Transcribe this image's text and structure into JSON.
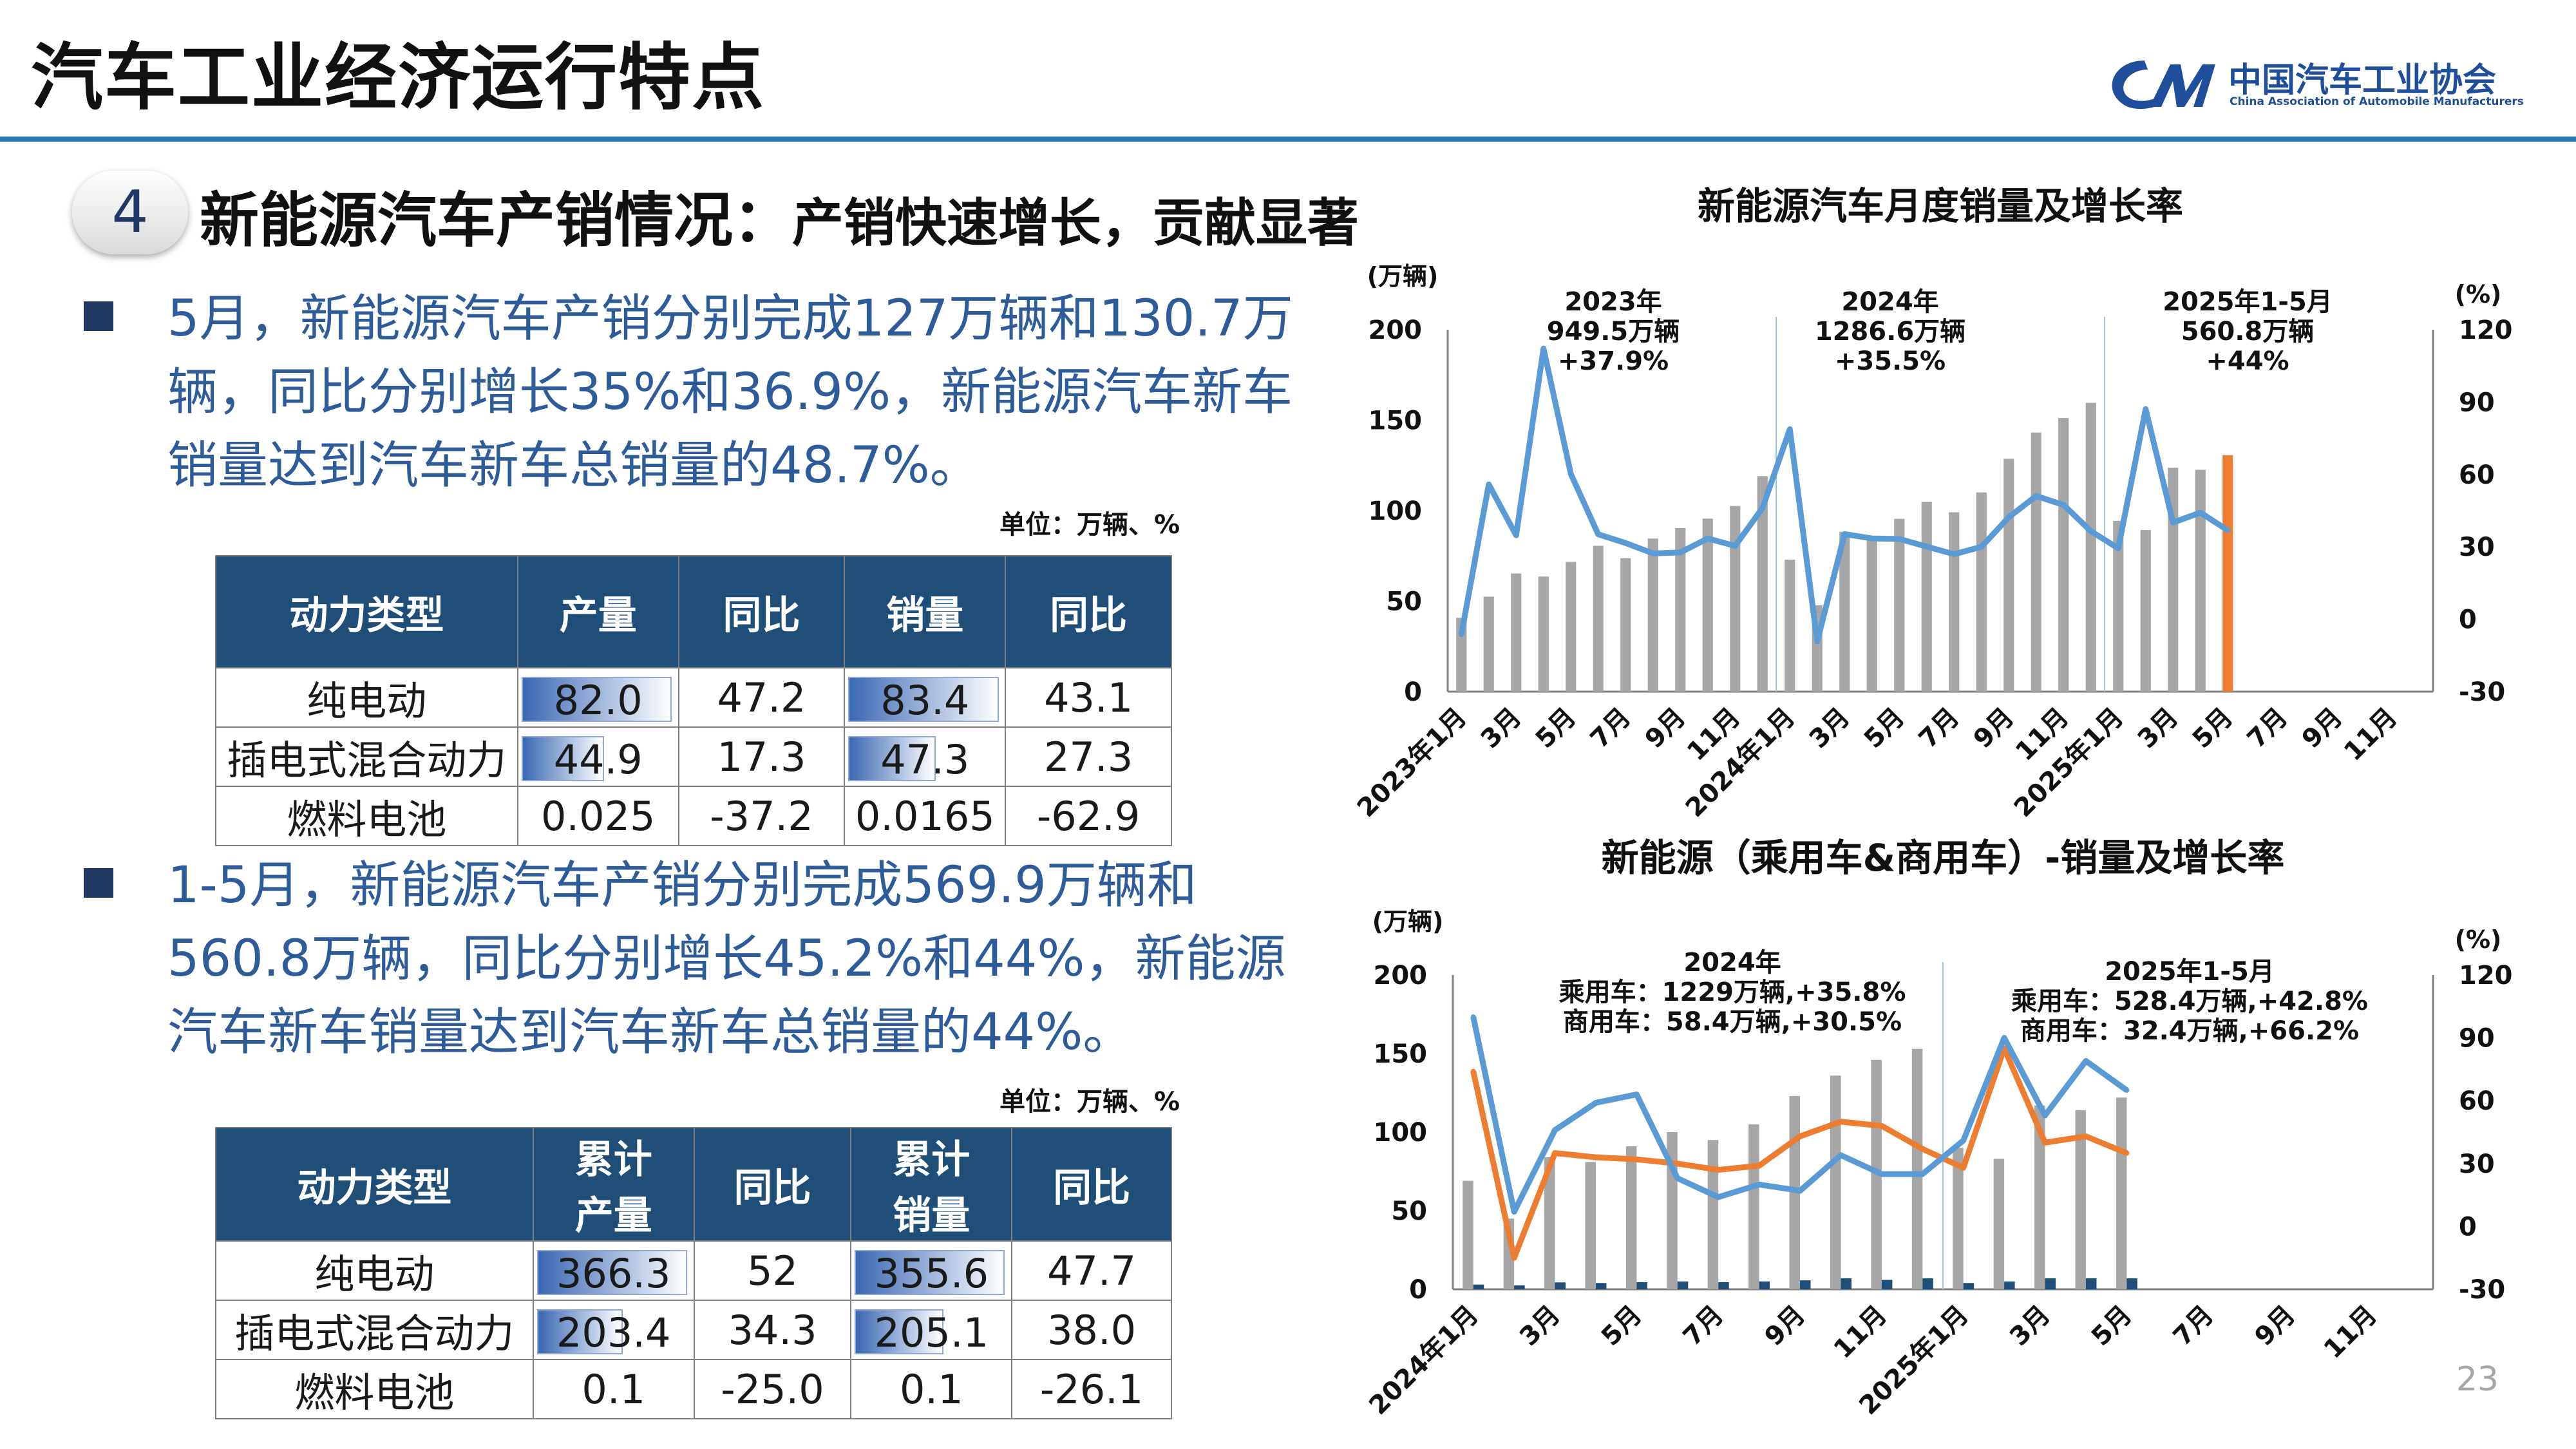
{
  "header": {
    "title": "汽车工业经济运行特点",
    "logo_cn": "中国汽车工业协会",
    "logo_en": "China Association of Automobile Manufacturers"
  },
  "section": {
    "number": "4",
    "title": "新能源汽车产销情况：",
    "subtitle": "产销快速增长，贡献显著"
  },
  "para1": "5月，新能源汽车产销分别完成127万辆和130.7万辆，同比分别增长35%和36.9%，新能源汽车新车销量达到汽车新车总销量的48.7%。",
  "para2": "1-5月，新能源汽车产销分别完成569.9万辆和560.8万辆，同比分别增长45.2%和44%，新能源汽车新车销量达到汽车新车总销量的44%。",
  "unit_label": "单位：万辆、%",
  "table1": {
    "headers": [
      "动力类型",
      "产量",
      "同比",
      "销量",
      "同比"
    ],
    "rows": [
      [
        "纯电动",
        "82.0",
        "47.2",
        "83.4",
        "43.1"
      ],
      [
        "插电式混合动力",
        "44.9",
        "17.3",
        "47.3",
        "27.3"
      ],
      [
        "燃料电池",
        "0.025",
        "-37.2",
        "0.0165",
        "-62.9"
      ]
    ],
    "bar_fractions": {
      "production": [
        0.98,
        0.54
      ],
      "sales": [
        0.98,
        0.57
      ]
    }
  },
  "table2": {
    "headers": [
      "动力类型",
      "累计产量",
      "同比",
      "累计销量",
      "同比"
    ],
    "rows": [
      [
        "纯电动",
        "366.3",
        "52",
        "355.6",
        "47.7"
      ],
      [
        "插电式混合动力",
        "203.4",
        "34.3",
        "205.1",
        "38.0"
      ],
      [
        "燃料电池",
        "0.1",
        "-25.0",
        "0.1",
        "-26.1"
      ]
    ],
    "bar_fractions": {
      "production": [
        0.98,
        0.56
      ],
      "sales": [
        0.98,
        0.58
      ]
    }
  },
  "page_number": "23",
  "chart_data": [
    {
      "type": "bar",
      "title": "新能源汽车月度销量及增长率",
      "ylabel": "(万辆)",
      "y2label": "(%)",
      "ylim": [
        0,
        200
      ],
      "y2lim": [
        -30,
        120
      ],
      "yticks": [
        "0",
        "50",
        "100",
        "150",
        "200"
      ],
      "y2ticks": [
        "-30",
        "0",
        "30",
        "60",
        "90",
        "120"
      ],
      "categories": [
        "2023年1月",
        "2月",
        "3月",
        "4月",
        "5月",
        "6月",
        "7月",
        "8月",
        "9月",
        "10月",
        "11月",
        "12月",
        "2024年1月",
        "2月",
        "3月",
        "4月",
        "5月",
        "6月",
        "7月",
        "8月",
        "9月",
        "10月",
        "11月",
        "12月",
        "2025年1月",
        "2月",
        "3月",
        "4月",
        "5月",
        "6月",
        "7月",
        "8月",
        "9月",
        "10月",
        "11月",
        "12月"
      ],
      "xtick_labels": [
        "2023年1月",
        "",
        "3月",
        "",
        "5月",
        "",
        "7月",
        "",
        "9月",
        "",
        "11月",
        "",
        "2024年1月",
        "",
        "3月",
        "",
        "5月",
        "",
        "7月",
        "",
        "9月",
        "",
        "11月",
        "",
        "2025年1月",
        "",
        "3月",
        "",
        "5月",
        "",
        "7月",
        "",
        "9月",
        "",
        "11月",
        ""
      ],
      "series": [
        {
          "kind": "bar",
          "values": [
            40.8,
            52.5,
            65.3,
            63.6,
            71.7,
            80.6,
            73.7,
            84.6,
            90.4,
            95.6,
            102.6,
            119.1,
            72.9,
            47.7,
            88.3,
            85,
            95.5,
            104.9,
            99.1,
            110.1,
            128.7,
            143.2,
            151.2,
            159.6,
            94.4,
            89.3,
            123.7,
            122.6,
            130.7,
            null,
            null,
            null,
            null,
            null,
            null,
            null
          ],
          "color": "#a6a6a6",
          "last_color": "#ed7d31"
        },
        {
          "kind": "line",
          "axis": "y2",
          "values": [
            -6.3,
            55.9,
            34.8,
            112.2,
            60.2,
            35.2,
            31.6,
            27.3,
            27.7,
            33.5,
            30.4,
            46.1,
            78.8,
            -9.2,
            35.3,
            33.5,
            33.3,
            30.1,
            27,
            30,
            42.3,
            51.1,
            47.4,
            36.5,
            29.4,
            87.1,
            40.1,
            44.2,
            36.9,
            null,
            null,
            null,
            null,
            null,
            null,
            null
          ],
          "color": "#5b9bd5"
        }
      ],
      "annotations": [
        {
          "year": "2023年",
          "value": "949.5万辆",
          "growth": "+37.9%"
        },
        {
          "year": "2024年",
          "value": "1286.6万辆",
          "growth": "+35.5%"
        },
        {
          "year": "2025年1-5月",
          "value": "560.8万辆",
          "growth": "+44%"
        }
      ]
    },
    {
      "type": "bar",
      "title": "新能源（乘用车&商用车）-销量及增长率",
      "ylabel": "(万辆)",
      "y2label": "(%)",
      "ylim": [
        0,
        200
      ],
      "y2lim": [
        -30,
        120
      ],
      "yticks": [
        "0",
        "50",
        "100",
        "150",
        "200"
      ],
      "y2ticks": [
        "-30",
        "0",
        "30",
        "60",
        "90",
        "120"
      ],
      "categories": [
        "2024年1月",
        "2月",
        "3月",
        "4月",
        "5月",
        "6月",
        "7月",
        "8月",
        "9月",
        "10月",
        "11月",
        "12月",
        "2025年1月",
        "2月",
        "3月",
        "4月",
        "5月",
        "6月",
        "7月",
        "8月",
        "9月",
        "10月",
        "11月",
        "12月"
      ],
      "xtick_labels": [
        "2024年1月",
        "",
        "3月",
        "",
        "5月",
        "",
        "7月",
        "",
        "9月",
        "",
        "11月",
        "",
        "2025年1月",
        "",
        "3月",
        "",
        "5月",
        "",
        "7月",
        "",
        "9月",
        "",
        "11月",
        ""
      ],
      "series": [
        {
          "kind": "bar",
          "values": [
            69,
            45,
            84,
            81,
            91,
            100,
            95,
            105,
            123,
            136,
            146,
            153,
            90,
            83,
            117,
            114,
            122,
            null,
            null,
            null,
            null,
            null,
            null,
            null
          ],
          "color": "#a6a6a6"
        },
        {
          "kind": "bar",
          "values": [
            3,
            2.5,
            4.4,
            4,
            4.5,
            5,
            4.5,
            5,
            5.7,
            7,
            6,
            7,
            4,
            5,
            7,
            7,
            7,
            null,
            null,
            null,
            null,
            null,
            null,
            null
          ],
          "color": "#1f4e79"
        },
        {
          "kind": "line",
          "axis": "y2",
          "values": [
            74,
            -15,
            35,
            33,
            32,
            30,
            27,
            29,
            43,
            50,
            48,
            37,
            28,
            85,
            40,
            43,
            35,
            null,
            null,
            null,
            null,
            null,
            null,
            null
          ],
          "color": "#ed7d31"
        },
        {
          "kind": "line",
          "axis": "y2",
          "values": [
            100,
            7,
            46,
            59,
            63,
            23,
            14,
            20,
            17,
            34,
            25,
            25,
            41,
            90,
            53,
            79,
            65,
            null,
            null,
            null,
            null,
            null,
            null,
            null
          ],
          "color": "#5b9bd5"
        }
      ],
      "annotations": [
        {
          "year": "2024年",
          "line1": "乘用车：1229万辆,+35.8%",
          "line2": "商用车：58.4万辆,+30.5%"
        },
        {
          "year": "2025年1-5月",
          "line1": "乘用车：528.4万辆,+42.8%",
          "line2": "商用车：32.4万辆,+66.2%"
        }
      ]
    }
  ]
}
